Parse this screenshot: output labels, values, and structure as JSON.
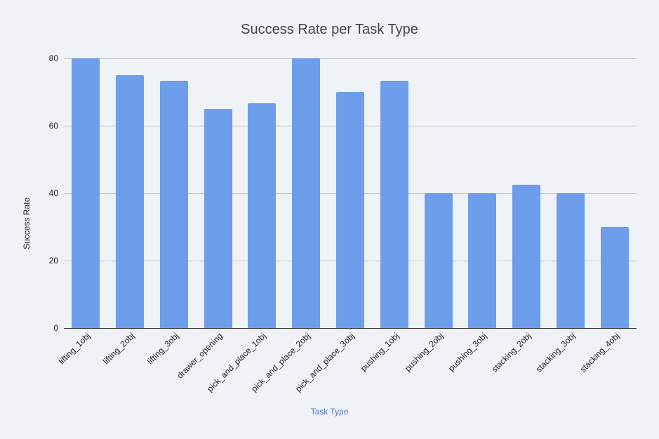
{
  "chart_data": {
    "type": "bar",
    "title": "Success Rate per Task Type",
    "xlabel": "Task Type",
    "ylabel": "Success Rate",
    "ylim": [
      0,
      80
    ],
    "yticks": [
      0,
      20,
      40,
      60,
      80
    ],
    "grid": true,
    "legend": "none",
    "bar_color": "#6d9eeb",
    "categories": [
      "lifting_1obj",
      "lifting_2obj",
      "lifting_3obj",
      "drawer_opening",
      "pick_and_place_1obj",
      "pick_and_place_2obj",
      "pick_and_place_3obj",
      "pushing_1obj",
      "pushing_2obj",
      "pushing_3obj",
      "stacking_2obj",
      "stacking_3obj",
      "stacking_4obj"
    ],
    "values": [
      80,
      75,
      73.3,
      65,
      66.7,
      80,
      70,
      73.3,
      40,
      40,
      42.5,
      40,
      30
    ]
  }
}
